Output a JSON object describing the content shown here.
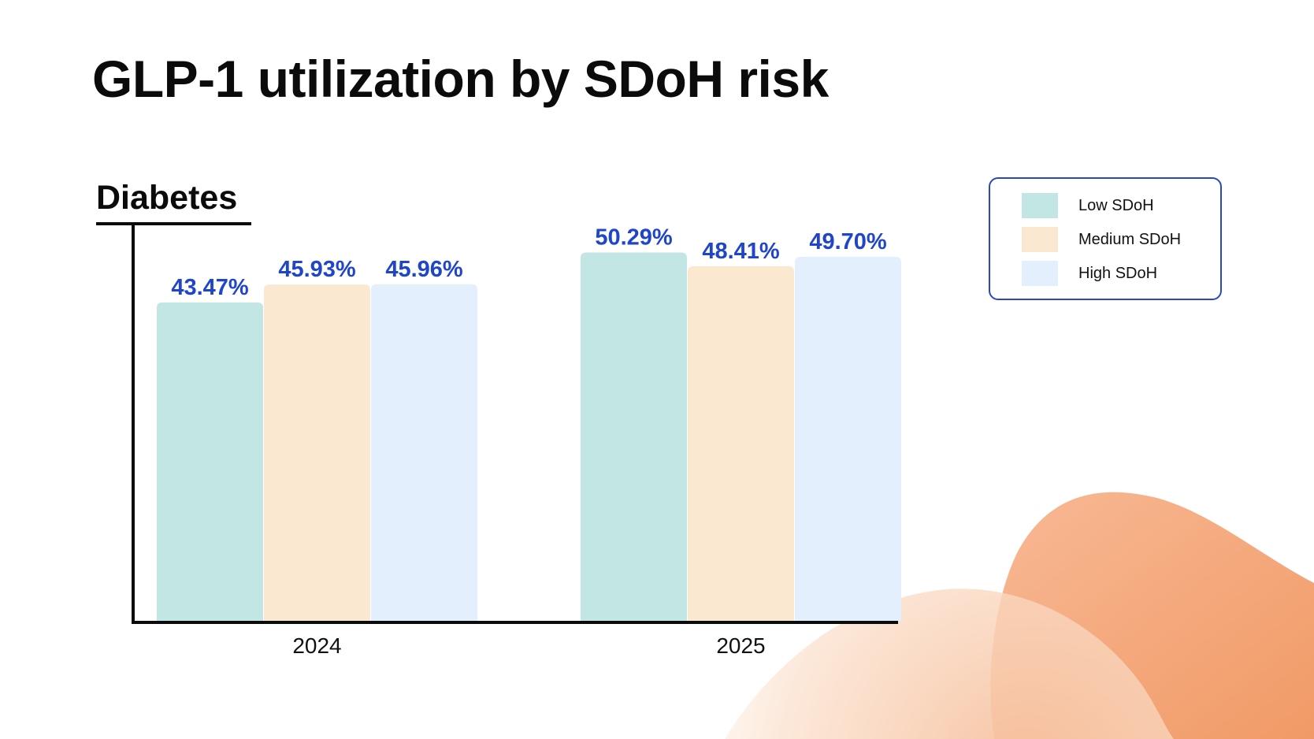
{
  "slide": {
    "title": "GLP-1 utilization by SDoH risk"
  },
  "chart_data": {
    "type": "bar",
    "title": "Diabetes",
    "categories": [
      "2024",
      "2025"
    ],
    "series": [
      {
        "name": "Low SDoH",
        "color": "#c2e6e3",
        "values": [
          43.47,
          50.29
        ]
      },
      {
        "name": "Medium SDoH",
        "color": "#fae8d0",
        "values": [
          45.93,
          48.41
        ]
      },
      {
        "name": "High SDoH",
        "color": "#e4effd",
        "values": [
          45.96,
          49.7
        ]
      }
    ],
    "data_labels": [
      [
        "43.47%",
        "50.29%"
      ],
      [
        "45.93%",
        "48.41%"
      ],
      [
        "45.96%",
        "49.70%"
      ]
    ],
    "value_suffix": "%",
    "ylim": [
      0,
      52.5
    ],
    "xlabel": "",
    "ylabel": "",
    "legend_position": "top-right",
    "grid": false
  },
  "colors": {
    "label_blue": "#1f45c9",
    "legend_border": "#2747c4",
    "decor_orange": "#f3a273"
  }
}
